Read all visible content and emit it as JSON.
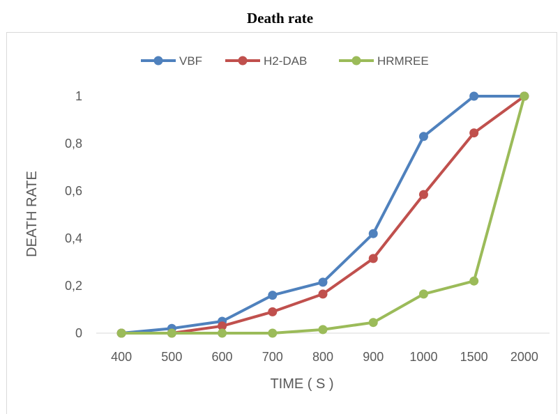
{
  "chart_data": {
    "type": "line",
    "title": "Death rate",
    "xlabel": "TIME ( S )",
    "ylabel": "DEATH RATE",
    "categories": [
      "400",
      "500",
      "600",
      "700",
      "800",
      "900",
      "1000",
      "1500",
      "2000"
    ],
    "yticks": [
      "0",
      "0,2",
      "0,4",
      "0,6",
      "0,8",
      "1"
    ],
    "ylim": [
      0,
      1
    ],
    "grid": false,
    "legend_position": "top",
    "series": [
      {
        "name": "VBF",
        "color": "#4f81bd",
        "values": [
          0,
          0.02,
          0.05,
          0.16,
          0.215,
          0.42,
          0.83,
          1.0,
          1.0
        ]
      },
      {
        "name": "H2-DAB",
        "color": "#c0504d",
        "values": [
          0,
          0.0,
          0.03,
          0.09,
          0.165,
          0.315,
          0.585,
          0.845,
          1.0
        ]
      },
      {
        "name": "HRMREE",
        "color": "#9bbb59",
        "values": [
          0,
          0.0,
          0.0,
          0.0,
          0.015,
          0.045,
          0.165,
          0.22,
          1.0
        ]
      }
    ]
  }
}
